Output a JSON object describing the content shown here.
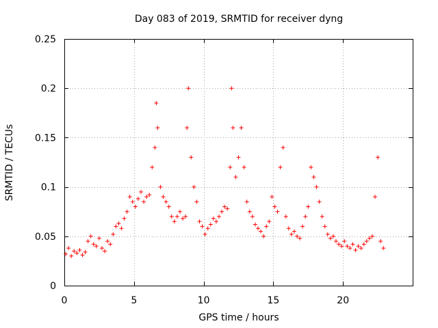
{
  "chart_data": {
    "type": "scatter",
    "title": "Day 083 of 2019, SRMTID for receiver dyng",
    "xlabel": "GPS time / hours",
    "ylabel": "SRMTID / TECUs",
    "xlim": [
      0,
      25
    ],
    "ylim": [
      0,
      0.25
    ],
    "xticks": [
      0,
      5,
      10,
      15,
      20
    ],
    "yticks": [
      0,
      0.05,
      0.1,
      0.15,
      0.2,
      0.25
    ],
    "xtick_labels": [
      "0",
      "5",
      "10",
      "15",
      "20"
    ],
    "ytick_labels": [
      "0",
      "0.05",
      "0.1",
      "0.15",
      "0.2",
      "0.25"
    ],
    "grid": true,
    "marker": "+",
    "marker_color": "#ff0000",
    "series": [
      {
        "name": "SRMTID",
        "x": [
          0.1,
          0.3,
          0.5,
          0.7,
          0.9,
          1.1,
          1.3,
          1.5,
          1.7,
          1.9,
          2.1,
          2.3,
          2.5,
          2.7,
          2.9,
          3.1,
          3.3,
          3.5,
          3.7,
          3.9,
          4.1,
          4.3,
          4.5,
          4.7,
          4.9,
          5.1,
          5.3,
          5.5,
          5.7,
          5.9,
          6.1,
          6.3,
          6.5,
          6.6,
          6.7,
          6.9,
          7.1,
          7.3,
          7.5,
          7.7,
          7.9,
          8.1,
          8.3,
          8.5,
          8.7,
          8.8,
          8.9,
          9.1,
          9.3,
          9.5,
          9.7,
          9.9,
          10.1,
          10.3,
          10.5,
          10.7,
          10.9,
          11.1,
          11.3,
          11.5,
          11.7,
          11.9,
          12.0,
          12.1,
          12.3,
          12.5,
          12.7,
          12.9,
          13.1,
          13.3,
          13.5,
          13.7,
          13.9,
          14.1,
          14.3,
          14.5,
          14.7,
          14.9,
          15.1,
          15.3,
          15.5,
          15.7,
          15.9,
          16.1,
          16.3,
          16.5,
          16.7,
          16.9,
          17.1,
          17.3,
          17.5,
          17.7,
          17.9,
          18.1,
          18.3,
          18.5,
          18.7,
          18.9,
          19.1,
          19.3,
          19.5,
          19.7,
          19.9,
          20.1,
          20.3,
          20.5,
          20.7,
          20.9,
          21.1,
          21.3,
          21.5,
          21.7,
          21.9,
          22.1,
          22.3,
          22.5,
          22.7,
          22.9
        ],
        "y": [
          0.032,
          0.038,
          0.03,
          0.035,
          0.033,
          0.036,
          0.031,
          0.034,
          0.045,
          0.05,
          0.042,
          0.04,
          0.048,
          0.038,
          0.035,
          0.045,
          0.042,
          0.052,
          0.06,
          0.063,
          0.058,
          0.068,
          0.075,
          0.09,
          0.085,
          0.08,
          0.088,
          0.095,
          0.085,
          0.09,
          0.092,
          0.12,
          0.14,
          0.185,
          0.16,
          0.1,
          0.09,
          0.085,
          0.08,
          0.07,
          0.065,
          0.07,
          0.075,
          0.068,
          0.07,
          0.16,
          0.2,
          0.13,
          0.1,
          0.085,
          0.065,
          0.06,
          0.052,
          0.058,
          0.062,
          0.068,
          0.065,
          0.07,
          0.075,
          0.08,
          0.078,
          0.12,
          0.2,
          0.16,
          0.11,
          0.13,
          0.16,
          0.12,
          0.085,
          0.075,
          0.07,
          0.062,
          0.058,
          0.055,
          0.05,
          0.06,
          0.065,
          0.09,
          0.08,
          0.075,
          0.12,
          0.14,
          0.07,
          0.058,
          0.052,
          0.055,
          0.05,
          0.048,
          0.06,
          0.07,
          0.08,
          0.12,
          0.11,
          0.1,
          0.085,
          0.07,
          0.06,
          0.052,
          0.048,
          0.05,
          0.045,
          0.042,
          0.04,
          0.045,
          0.04,
          0.038,
          0.042,
          0.036,
          0.04,
          0.038,
          0.042,
          0.045,
          0.048,
          0.05,
          0.09,
          0.13,
          0.045,
          0.038
        ]
      }
    ]
  }
}
